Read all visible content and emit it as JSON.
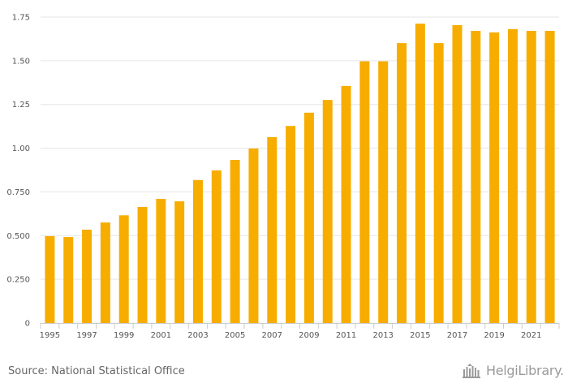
{
  "chart_data": {
    "type": "bar",
    "title": "",
    "xlabel": "",
    "ylabel": "",
    "categories": [
      "1995",
      "1996",
      "1997",
      "1998",
      "1999",
      "2000",
      "2001",
      "2002",
      "2003",
      "2004",
      "2005",
      "2006",
      "2007",
      "2008",
      "2009",
      "2010",
      "2011",
      "2012",
      "2013",
      "2014",
      "2015",
      "2016",
      "2017",
      "2018",
      "2019",
      "2020",
      "2021",
      "2022"
    ],
    "x_tick_labels": [
      "1995",
      "1997",
      "1999",
      "2001",
      "2003",
      "2005",
      "2007",
      "2009",
      "2011",
      "2013",
      "2015",
      "2017",
      "2019",
      "2021"
    ],
    "values": [
      0.497,
      0.492,
      0.534,
      0.575,
      0.616,
      0.664,
      0.71,
      0.696,
      0.818,
      0.873,
      0.933,
      0.998,
      1.063,
      1.127,
      1.203,
      1.276,
      1.356,
      1.497,
      1.497,
      1.601,
      1.712,
      1.601,
      1.704,
      1.671,
      1.662,
      1.681,
      1.671,
      1.671
    ],
    "ylim": [
      0,
      1.75
    ],
    "y_ticks": [
      0,
      0.25,
      0.5,
      0.75,
      1.0,
      1.25,
      1.5,
      1.75
    ],
    "y_tick_labels": [
      "0",
      "0.250",
      "0.500",
      "0.750",
      "1.00",
      "1.25",
      "1.50",
      "1.75"
    ],
    "grid": true,
    "bar_color": "#f7ad00"
  },
  "footer": {
    "source": "Source: National Statistical Office",
    "logo_text": "HelgiLibrary."
  }
}
